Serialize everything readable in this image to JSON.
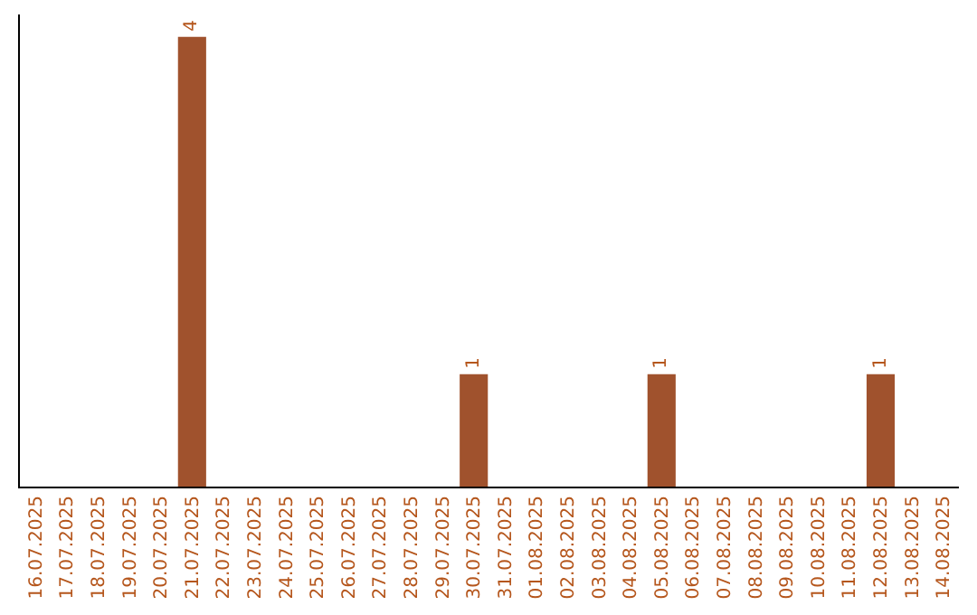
{
  "chart_data": {
    "type": "bar",
    "categories": [
      "16.07.2025",
      "17.07.2025",
      "18.07.2025",
      "19.07.2025",
      "20.07.2025",
      "21.07.2025",
      "22.07.2025",
      "23.07.2025",
      "24.07.2025",
      "25.07.2025",
      "26.07.2025",
      "27.07.2025",
      "28.07.2025",
      "29.07.2025",
      "30.07.2025",
      "31.07.2025",
      "01.08.2025",
      "02.08.2025",
      "03.08.2025",
      "04.08.2025",
      "05.08.2025",
      "06.08.2025",
      "07.08.2025",
      "08.08.2025",
      "09.08.2025",
      "10.08.2025",
      "11.08.2025",
      "12.08.2025",
      "13.08.2025",
      "14.08.2025"
    ],
    "values": [
      0,
      0,
      0,
      0,
      0,
      4,
      0,
      0,
      0,
      0,
      0,
      0,
      0,
      0,
      1,
      0,
      0,
      0,
      0,
      0,
      1,
      0,
      0,
      0,
      0,
      0,
      0,
      1,
      0,
      0
    ],
    "color": "#a0522d",
    "value_labels": [
      null,
      null,
      null,
      null,
      null,
      "4",
      null,
      null,
      null,
      null,
      null,
      null,
      null,
      null,
      "1",
      null,
      null,
      null,
      null,
      null,
      "1",
      null,
      null,
      null,
      null,
      null,
      null,
      "1",
      null,
      null
    ],
    "tick_labels": "x"
  }
}
